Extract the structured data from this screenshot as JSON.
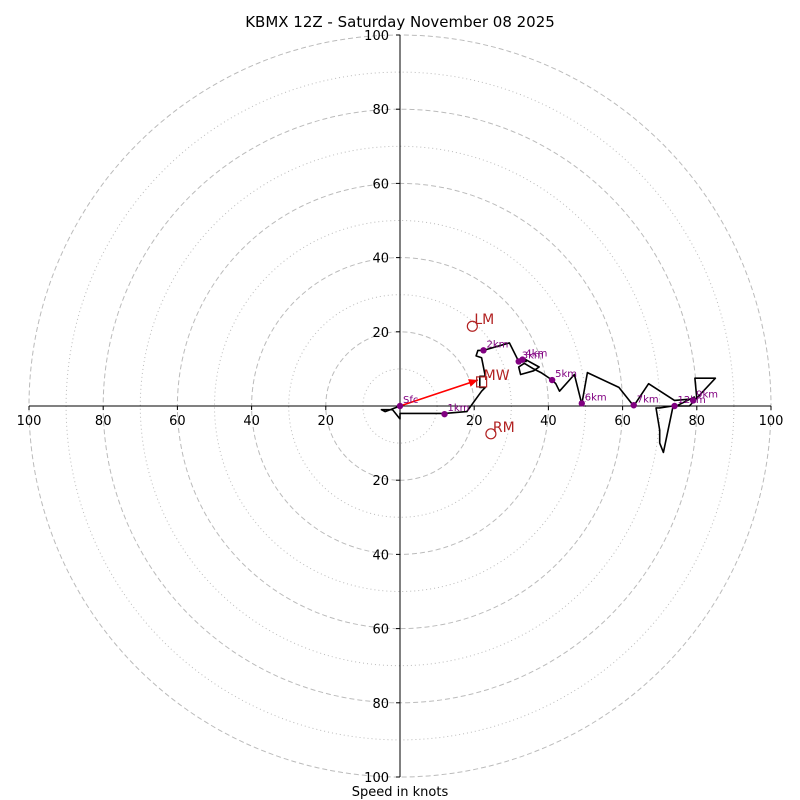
{
  "chart_data": {
    "type": "hodograph",
    "title": "KBMX 12Z - Saturday November 08 2025",
    "xlabel": "Speed in knots",
    "units": "knots",
    "xlim": [
      -100,
      100
    ],
    "ylim": [
      -100,
      100
    ],
    "rings_major": [
      20,
      40,
      60,
      80,
      100
    ],
    "rings_minor": [
      10,
      30,
      50,
      70,
      90
    ],
    "tick_values": [
      20,
      40,
      60,
      80,
      100
    ],
    "tick_labels": {
      "left": [
        "20",
        "40",
        "60",
        "80",
        "100"
      ],
      "right": [
        "20",
        "40",
        "60",
        "80",
        "100"
      ],
      "up": [
        "20",
        "40",
        "60",
        "80",
        "100"
      ],
      "down": [
        "20",
        "40",
        "60",
        "80",
        "100"
      ]
    },
    "trace": [
      [
        0,
        0
      ],
      [
        -4,
        -1.5
      ],
      [
        -5,
        -1
      ],
      [
        -2,
        -1
      ],
      [
        0,
        -3.5
      ],
      [
        0,
        -2
      ],
      [
        12,
        -2
      ],
      [
        18,
        -1.5
      ],
      [
        22,
        4
      ],
      [
        23,
        5
      ],
      [
        21.5,
        5
      ],
      [
        21.5,
        7
      ],
      [
        21.5,
        8
      ],
      [
        23,
        8
      ],
      [
        22,
        13
      ],
      [
        20.5,
        13.5
      ],
      [
        21,
        15
      ],
      [
        22.5,
        15
      ],
      [
        29.5,
        17
      ],
      [
        32,
        12
      ],
      [
        34,
        12
      ],
      [
        33,
        13
      ],
      [
        37.5,
        10.5
      ],
      [
        36,
        9.5
      ],
      [
        32.5,
        8.5
      ],
      [
        32,
        10.5
      ],
      [
        33.5,
        11.5
      ],
      [
        36,
        10
      ],
      [
        38,
        9
      ],
      [
        41,
        7
      ],
      [
        42,
        6
      ],
      [
        43,
        4
      ],
      [
        47,
        8.5
      ],
      [
        49,
        0.5
      ],
      [
        50.5,
        9
      ],
      [
        59,
        5
      ],
      [
        63,
        0
      ],
      [
        67,
        6
      ],
      [
        74,
        1.5
      ],
      [
        80,
        2
      ],
      [
        79.5,
        7.5
      ],
      [
        85,
        7.5
      ],
      [
        78,
        0
      ],
      [
        73.5,
        0
      ],
      [
        70,
        -0.5
      ],
      [
        69,
        -0.5
      ],
      [
        70,
        -6.5
      ],
      [
        70,
        -10
      ],
      [
        71,
        -12.5
      ],
      [
        73.5,
        -0.5
      ],
      [
        79.5,
        2.5
      ]
    ],
    "height_labels": [
      {
        "label": "Sfc",
        "x": 0,
        "y": 0
      },
      {
        "label": "1km",
        "x": 12,
        "y": -2.2
      },
      {
        "label": "2km",
        "x": 22.5,
        "y": 15
      },
      {
        "label": "3km",
        "x": 32,
        "y": 12
      },
      {
        "label": "4km",
        "x": 33,
        "y": 12.5
      },
      {
        "label": "5km",
        "x": 41,
        "y": 7
      },
      {
        "label": "6km",
        "x": 49,
        "y": 0.7
      },
      {
        "label": "7km",
        "x": 63,
        "y": 0.2
      },
      {
        "label": "12km",
        "x": 74,
        "y": 0
      },
      {
        "label": "9km",
        "x": 79,
        "y": 1.5
      }
    ],
    "storm_motion": [
      {
        "label": "LM",
        "x": 19.5,
        "y": 21.5,
        "marker": "circle"
      },
      {
        "label": "MW",
        "x": 22,
        "y": 6.5,
        "marker": "square"
      },
      {
        "label": "RM",
        "x": 24.5,
        "y": -7.5,
        "marker": "circle"
      }
    ],
    "bunkers_vector": {
      "from": [
        0,
        0
      ],
      "to": [
        21,
        7
      ]
    },
    "colors": {
      "trace": "#000000",
      "height_points": "#800080",
      "storm_motion": "#b22222",
      "vector": "#ff0000",
      "grid": "#bbbbbb"
    }
  }
}
